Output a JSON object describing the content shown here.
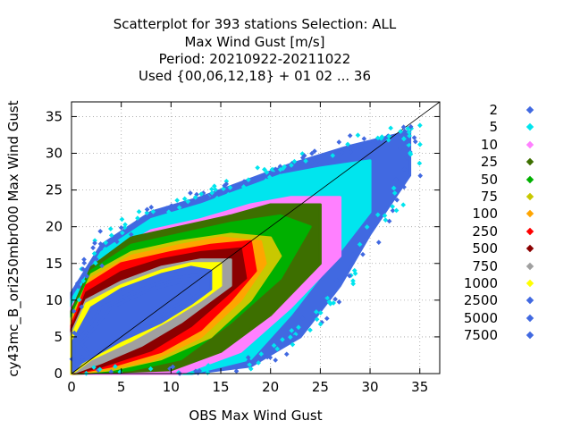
{
  "chart_data": {
    "type": "scatter",
    "title_lines": [
      "Scatterplot for  393 stations Selection: ALL",
      "Max Wind Gust [m/s]",
      "Period: 20210922-20211022",
      "Used {00,06,12,18} + 01 02 ... 36"
    ],
    "xlabel": "OBS Max Wind Gust",
    "ylabel": "cy43mc_B_ori250mbr000 Max Wind Gust",
    "xlim": [
      0,
      37
    ],
    "ylim": [
      0,
      37
    ],
    "xticks": [
      0,
      5,
      10,
      15,
      20,
      25,
      30,
      35
    ],
    "yticks": [
      0,
      5,
      10,
      15,
      20,
      25,
      30,
      35
    ],
    "grid": true,
    "diagonal_line": true,
    "legend_position": "right",
    "series": [
      {
        "name": "2",
        "color": "#4169e1",
        "outline": [
          [
            0,
            11
          ],
          [
            3,
            17.5
          ],
          [
            8,
            22
          ],
          [
            13,
            24
          ],
          [
            17,
            26
          ],
          [
            22,
            28.5
          ],
          [
            28,
            31
          ],
          [
            34,
            33
          ],
          [
            34,
            27
          ],
          [
            30,
            19
          ],
          [
            27,
            12
          ],
          [
            23,
            5
          ],
          [
            18,
            1
          ],
          [
            12,
            0
          ],
          [
            0,
            0
          ]
        ]
      },
      {
        "name": "5",
        "color": "#00e5ee",
        "outline": [
          [
            0,
            10
          ],
          [
            3,
            16.5
          ],
          [
            8,
            21
          ],
          [
            13,
            23
          ],
          [
            17,
            25
          ],
          [
            21,
            27
          ],
          [
            25,
            28
          ],
          [
            30,
            29
          ],
          [
            30,
            22
          ],
          [
            26,
            15
          ],
          [
            22,
            8
          ],
          [
            18,
            2
          ],
          [
            12,
            0
          ],
          [
            0,
            0
          ]
        ]
      },
      {
        "name": "10",
        "color": "#ff80ff",
        "outline": [
          [
            0,
            9
          ],
          [
            3,
            15.5
          ],
          [
            8,
            19.5
          ],
          [
            13,
            21
          ],
          [
            18,
            23
          ],
          [
            22,
            24
          ],
          [
            27,
            24
          ],
          [
            27,
            16
          ],
          [
            22,
            9
          ],
          [
            17,
            3
          ],
          [
            11,
            0
          ],
          [
            0,
            0
          ]
        ]
      },
      {
        "name": "25",
        "color": "#3d6f00",
        "outline": [
          [
            0,
            8.5
          ],
          [
            2,
            14.5
          ],
          [
            6,
            18.5
          ],
          [
            11,
            20
          ],
          [
            16,
            21.5
          ],
          [
            20,
            23
          ],
          [
            25,
            23
          ],
          [
            25,
            15
          ],
          [
            20,
            8
          ],
          [
            15,
            3
          ],
          [
            10,
            0.5
          ],
          [
            0,
            0
          ]
        ]
      },
      {
        "name": "50",
        "color": "#00b000",
        "outline": [
          [
            0,
            8
          ],
          [
            2,
            14
          ],
          [
            6,
            17.5
          ],
          [
            11,
            19
          ],
          [
            16,
            20.5
          ],
          [
            21,
            21.5
          ],
          [
            24,
            20
          ],
          [
            21,
            13
          ],
          [
            16,
            7
          ],
          [
            11,
            2
          ],
          [
            6,
            0.5
          ],
          [
            0,
            0
          ]
        ]
      },
      {
        "name": "75",
        "color": "#c8c800",
        "outline": [
          [
            0,
            7.5
          ],
          [
            2,
            13.5
          ],
          [
            6,
            16.5
          ],
          [
            11,
            18
          ],
          [
            16,
            19
          ],
          [
            20,
            18.5
          ],
          [
            21,
            16
          ],
          [
            18,
            10
          ],
          [
            14,
            5
          ],
          [
            9,
            2
          ],
          [
            4,
            0.5
          ],
          [
            0,
            0
          ]
        ]
      },
      {
        "name": "100",
        "color": "#ffa500",
        "outline": [
          [
            0,
            7
          ],
          [
            2,
            13
          ],
          [
            6,
            16
          ],
          [
            11,
            17.5
          ],
          [
            15,
            18.5
          ],
          [
            19,
            18
          ],
          [
            19.5,
            15
          ],
          [
            17,
            10
          ],
          [
            13,
            5
          ],
          [
            8,
            1.8
          ],
          [
            3,
            0.5
          ],
          [
            0,
            0
          ]
        ]
      },
      {
        "name": "250",
        "color": "#ff0000",
        "outline": [
          [
            0,
            6.5
          ],
          [
            1.5,
            12
          ],
          [
            5,
            15
          ],
          [
            10,
            16.5
          ],
          [
            14,
            17.5
          ],
          [
            18,
            18
          ],
          [
            18.5,
            14
          ],
          [
            16,
            10
          ],
          [
            13,
            6
          ],
          [
            9,
            3
          ],
          [
            4,
            1
          ],
          [
            0,
            0
          ]
        ]
      },
      {
        "name": "500",
        "color": "#8b0000",
        "outline": [
          [
            0,
            6
          ],
          [
            1.5,
            11
          ],
          [
            5,
            13.8
          ],
          [
            9,
            15.5
          ],
          [
            13,
            16.5
          ],
          [
            17,
            17
          ],
          [
            17.5,
            13
          ],
          [
            15,
            10
          ],
          [
            12,
            6.5
          ],
          [
            8,
            3.2
          ],
          [
            3,
            1
          ],
          [
            0,
            0
          ]
        ]
      },
      {
        "name": "750",
        "color": "#a0a0a0",
        "outline": [
          [
            0,
            5.5
          ],
          [
            1.5,
            10
          ],
          [
            5,
            12.5
          ],
          [
            9,
            14.5
          ],
          [
            13,
            15.5
          ],
          [
            16,
            15.5
          ],
          [
            16,
            12
          ],
          [
            14,
            10
          ],
          [
            11,
            7
          ],
          [
            7,
            3.8
          ],
          [
            3,
            1.5
          ],
          [
            0,
            0
          ]
        ]
      },
      {
        "name": "1000",
        "color": "#ffff00",
        "outline": [
          [
            0,
            5
          ],
          [
            1.5,
            9.5
          ],
          [
            5,
            12
          ],
          [
            9,
            14
          ],
          [
            12,
            15
          ],
          [
            15,
            15
          ],
          [
            15,
            12
          ],
          [
            13,
            10
          ],
          [
            10,
            7.5
          ],
          [
            6,
            4.5
          ],
          [
            2,
            2
          ],
          [
            0,
            0
          ]
        ]
      },
      {
        "name": "2500",
        "color": "#4169e1",
        "outline": [
          [
            0.2,
            4.5
          ],
          [
            2,
            9
          ],
          [
            5,
            11.5
          ],
          [
            9,
            13.5
          ],
          [
            12,
            14.5
          ],
          [
            14,
            14
          ],
          [
            14,
            11.5
          ],
          [
            12,
            9.5
          ],
          [
            9,
            7
          ],
          [
            5,
            4.5
          ],
          [
            1,
            1.5
          ],
          [
            0.2,
            0.3
          ]
        ]
      },
      {
        "name": "5000",
        "color": "#4169e1",
        "outline": [
          [
            0.5,
            4
          ],
          [
            3,
            9
          ],
          [
            6,
            11
          ],
          [
            10,
            13
          ],
          [
            13,
            13.5
          ],
          [
            13,
            11
          ],
          [
            10,
            8.5
          ],
          [
            6,
            5.5
          ],
          [
            2,
            2.5
          ],
          [
            0.5,
            1
          ]
        ]
      },
      {
        "name": "7500",
        "color": "#4169e1",
        "outline": [
          [
            1,
            4
          ],
          [
            4,
            9
          ],
          [
            8,
            11.5
          ],
          [
            11,
            12.5
          ],
          [
            12,
            10.5
          ],
          [
            9,
            8
          ],
          [
            5,
            5
          ],
          [
            2,
            2.5
          ]
        ]
      }
    ]
  }
}
